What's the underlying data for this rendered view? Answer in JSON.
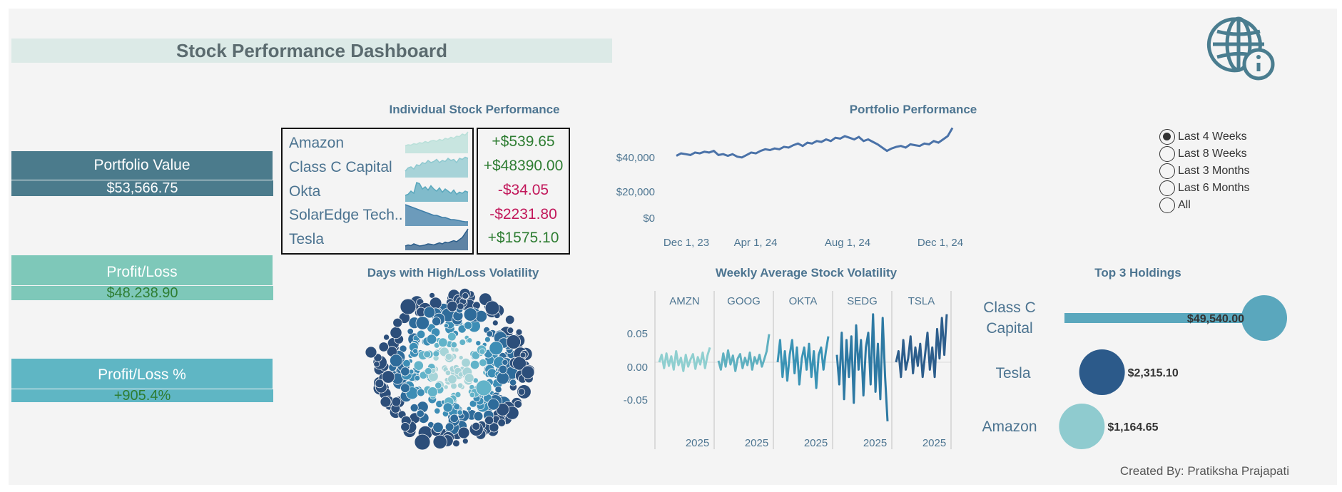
{
  "header": {
    "title": "Stock Performance Dashboard",
    "icon": "globe-info-icon"
  },
  "kpis": {
    "portfolio_value": {
      "label": "Portfolio Value",
      "value": "$53,566.75",
      "label_bg": "#4b7b8c",
      "value_color": "#ffffff"
    },
    "profit_loss": {
      "label": "Profit/Loss",
      "value": "$48.238.90",
      "label_bg": "#7ec8b9",
      "value_color": "#2e7d32"
    },
    "profit_loss_pct": {
      "label": "Profit/Loss %",
      "value": "+905.4%",
      "label_bg": "#5fb6c4",
      "value_color": "#2e7d32"
    }
  },
  "individual": {
    "title": "Individual Stock Performance",
    "stocks": [
      {
        "name": "Amazon",
        "change": "+$539.65",
        "positive": true,
        "spark_color": "#b9e0d9",
        "spark": [
          0.35,
          0.4,
          0.38,
          0.45,
          0.42,
          0.5,
          0.47,
          0.55,
          0.5,
          0.58,
          0.6,
          0.56,
          0.65,
          0.6,
          0.7,
          0.66,
          0.75,
          0.7,
          0.8,
          0.78,
          0.9,
          0.85,
          1.0
        ]
      },
      {
        "name": "Class C Capital",
        "change": "+$48390.00",
        "positive": true,
        "spark_color": "#8dc8cf",
        "spark": [
          0.3,
          0.45,
          0.5,
          0.4,
          0.6,
          0.55,
          0.7,
          0.65,
          0.8,
          0.7,
          0.75,
          0.85,
          0.7,
          0.8,
          0.75,
          0.9,
          0.8,
          0.85,
          0.7,
          0.9,
          0.85,
          0.95,
          0.9
        ]
      },
      {
        "name": "Okta",
        "change": "-$34.05",
        "positive": false,
        "spark_color": "#5aa8bd",
        "spark": [
          0.3,
          0.35,
          0.5,
          0.4,
          0.9,
          0.85,
          0.6,
          0.7,
          0.55,
          0.75,
          0.6,
          0.5,
          0.65,
          0.45,
          0.6,
          0.5,
          0.4,
          0.55,
          0.35,
          0.45,
          0.4,
          0.5,
          0.45
        ]
      },
      {
        "name": "SolarEdge Tech..",
        "change": "-$2231.80",
        "positive": false,
        "spark_color": "#3f7ea8",
        "spark": [
          1.0,
          0.95,
          0.9,
          0.85,
          0.8,
          0.75,
          0.7,
          0.65,
          0.6,
          0.55,
          0.5,
          0.5,
          0.45,
          0.4,
          0.4,
          0.35,
          0.3,
          0.3,
          0.28,
          0.25,
          0.22,
          0.2,
          0.2
        ]
      },
      {
        "name": "Tesla",
        "change": "+$1575.10",
        "positive": true,
        "spark_color": "#2c5e8a",
        "spark": [
          0.2,
          0.25,
          0.22,
          0.3,
          0.25,
          0.2,
          0.22,
          0.25,
          0.3,
          0.28,
          0.25,
          0.3,
          0.35,
          0.3,
          0.38,
          0.35,
          0.4,
          0.45,
          0.4,
          0.5,
          0.6,
          0.8,
          1.0
        ]
      }
    ]
  },
  "chart_data": [
    {
      "type": "line",
      "title": "Portfolio Performance",
      "xlabel": "",
      "ylabel": "",
      "x_ticks": [
        "Dec 1, 23",
        "Apr 1, 24",
        "Aug 1, 24",
        "Dec 1, 24"
      ],
      "y_ticks": [
        "$40,000",
        "$20,000",
        "$0"
      ],
      "ylim": [
        0,
        53000
      ],
      "x": [
        0,
        1,
        2,
        3,
        4,
        5,
        6,
        7,
        8,
        9,
        10,
        11,
        12,
        13,
        14,
        15,
        16,
        17,
        18,
        19,
        20,
        21,
        22,
        23,
        24,
        25,
        26,
        27,
        28,
        29,
        30,
        31,
        32,
        33,
        34,
        35,
        36,
        37,
        38,
        39,
        40,
        41,
        42,
        43,
        44,
        45,
        46,
        47,
        48,
        49,
        50,
        51,
        52,
        53,
        54,
        55,
        56,
        57,
        58,
        59
      ],
      "values": [
        38000,
        39500,
        39000,
        38500,
        40000,
        39500,
        40500,
        40000,
        41000,
        38500,
        39000,
        38000,
        39000,
        37500,
        37000,
        38500,
        40000,
        39500,
        41000,
        42000,
        41500,
        42500,
        42000,
        43500,
        43000,
        44500,
        45500,
        44000,
        46000,
        45500,
        47000,
        46500,
        48000,
        47000,
        49000,
        48500,
        50000,
        49000,
        48000,
        49500,
        47000,
        48000,
        46500,
        45000,
        43000,
        41000,
        42500,
        43500,
        44000,
        43000,
        45000,
        44500,
        44000,
        45500,
        45000,
        47000,
        46000,
        48000,
        50000,
        55000
      ]
    },
    {
      "type": "line",
      "title": "Weekly Average Stock Volatility",
      "panels": [
        "AMZN",
        "GOOG",
        "OKTA",
        "SEDG",
        "TSLA"
      ],
      "panel_colors": [
        "#8fcfd0",
        "#5fb0c0",
        "#3a93b5",
        "#2d79a3",
        "#2d5e8c"
      ],
      "panel_xlabel": "2025",
      "y_ticks": [
        "0.05",
        "0.00",
        "-0.05"
      ],
      "ylim": [
        -0.085,
        0.085
      ],
      "series": [
        {
          "name": "AMZN",
          "values": [
            0.0,
            0.01,
            -0.008,
            0.012,
            -0.005,
            0.008,
            -0.01,
            0.015,
            -0.004,
            0.006,
            -0.012,
            0.01,
            -0.006,
            0.004,
            0.011,
            -0.009,
            0.007,
            -0.003,
            0.013,
            -0.008,
            0.009,
            0.02
          ]
        },
        {
          "name": "GOOG",
          "values": [
            0.002,
            -0.01,
            0.012,
            -0.006,
            0.016,
            -0.003,
            0.009,
            -0.012,
            0.005,
            0.011,
            -0.008,
            0.006,
            -0.004,
            0.013,
            -0.01,
            0.007,
            -0.002,
            0.01,
            -0.006,
            0.004,
            0.015,
            0.038
          ]
        },
        {
          "name": "OKTA",
          "values": [
            0.0,
            0.03,
            -0.02,
            0.015,
            -0.025,
            0.01,
            0.03,
            -0.015,
            0.02,
            -0.03,
            0.005,
            0.02,
            -0.01,
            0.025,
            -0.02,
            0.015,
            -0.035,
            0.01,
            0.02,
            -0.01,
            0.015,
            0.035
          ]
        },
        {
          "name": "SEDG",
          "values": [
            0.01,
            -0.03,
            0.04,
            -0.05,
            0.03,
            -0.02,
            0.035,
            -0.055,
            0.05,
            -0.01,
            0.03,
            -0.045,
            0.02,
            0.04,
            -0.03,
            0.065,
            -0.04,
            0.025,
            -0.05,
            0.06,
            -0.02,
            -0.08
          ]
        },
        {
          "name": "TSLA",
          "values": [
            0.0,
            0.015,
            -0.02,
            0.03,
            -0.01,
            0.005,
            0.035,
            -0.015,
            0.02,
            -0.005,
            0.025,
            -0.02,
            0.01,
            0.04,
            -0.01,
            0.02,
            -0.02,
            0.045,
            0.005,
            0.06,
            0.01,
            0.065
          ]
        }
      ]
    },
    {
      "type": "bubble",
      "title": "Days with High/Loss Volatility",
      "colors": [
        "#2c4e7a",
        "#2e6b9a",
        "#3c8db5",
        "#62b3c9",
        "#a6d4d8"
      ],
      "bubble_count": 420
    },
    {
      "type": "bar",
      "title": "Top 3 Holdings",
      "categories": [
        "Class C Capital",
        "Tesla",
        "Amazon"
      ],
      "values": [
        49540.0,
        2315.1,
        1164.65
      ],
      "labels": [
        "$49,540.00",
        "$2,315.10",
        "$1,164.65"
      ],
      "colors": [
        "#5aa7bd",
        "#2c5a8a",
        "#8fcbcf"
      ]
    }
  ],
  "sections": {
    "portfolio_title": "Portfolio Performance",
    "volatility_days_title": "Days with High/Loss Volatility",
    "weekly_vol_title": "Weekly Average Stock Volatility",
    "top_holdings_title": "Top 3 Holdings"
  },
  "top_holdings": {
    "class_c_line1": "Class C",
    "class_c_line2": "Capital",
    "tesla": "Tesla",
    "amazon": "Amazon"
  },
  "filter": {
    "options": [
      "Last 4 Weeks",
      "Last 8 Weeks",
      "Last 3 Months",
      "Last 6 Months",
      "All"
    ],
    "selected": 0
  },
  "footer": {
    "credit": "Created By: Pratiksha Prajapati"
  }
}
